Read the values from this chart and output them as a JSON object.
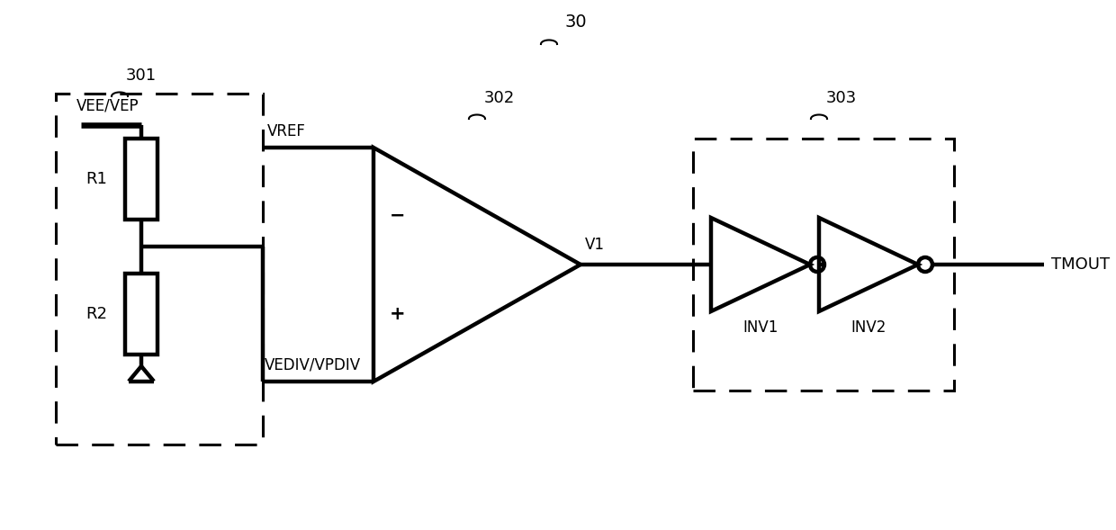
{
  "bg_color": "#ffffff",
  "line_color": "#000000",
  "lw": 2.8,
  "lw_thick": 3.2,
  "fig_width": 12.4,
  "fig_height": 5.89,
  "label_30": "30",
  "label_301": "301",
  "label_302": "302",
  "label_303": "303",
  "label_R1": "R1",
  "label_R2": "R2",
  "label_VEE": "VEE/VEP",
  "label_VREF": "VREF",
  "label_VEDIV": "VEDIV/VPDIV",
  "label_V1": "V1",
  "label_INV1": "INV1",
  "label_INV2": "INV2",
  "label_TMOUT": "TMOUT",
  "fs_main": 13,
  "fs_label": 12,
  "fs_sign": 13
}
